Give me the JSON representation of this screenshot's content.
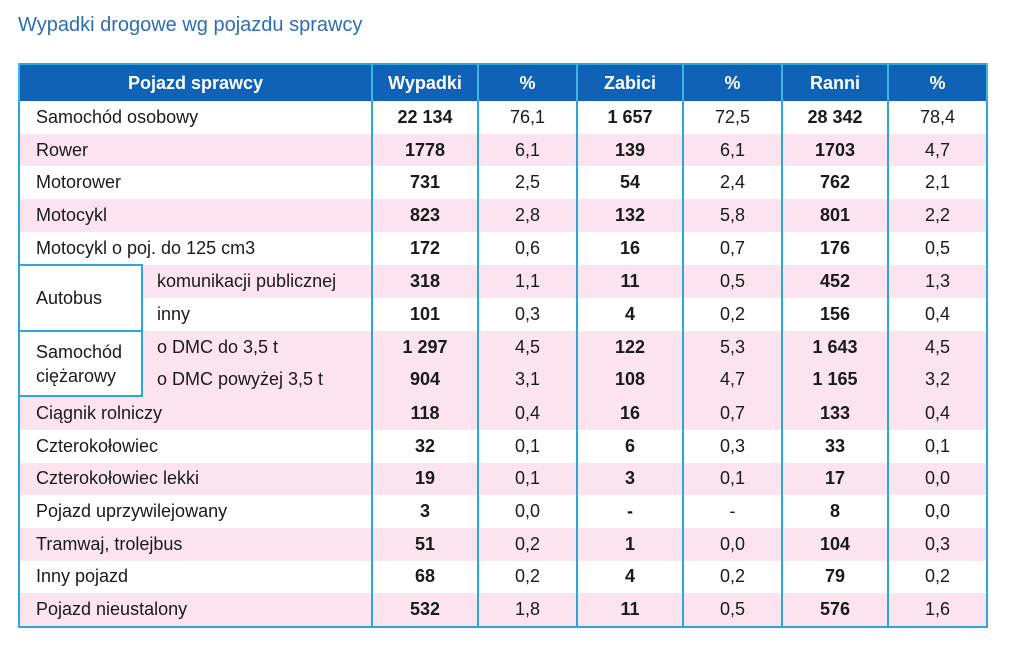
{
  "title": "Wypadki drogowe wg pojazdu sprawcy",
  "headers": [
    "Pojazd sprawcy",
    "Wypadki",
    "%",
    "Zabici",
    "%",
    "Ranni",
    "%"
  ],
  "rows": [
    {
      "name": "Samochód osobowy",
      "v": [
        "22 134",
        "76,1",
        "1 657",
        "72,5",
        "28 342",
        "78,4"
      ]
    },
    {
      "name": "Rower",
      "v": [
        "1778",
        "6,1",
        "139",
        "6,1",
        "1703",
        "4,7"
      ]
    },
    {
      "name": "Motorower",
      "v": [
        "731",
        "2,5",
        "54",
        "2,4",
        "762",
        "2,1"
      ]
    },
    {
      "name": "Motocykl",
      "v": [
        "823",
        "2,8",
        "132",
        "5,8",
        "801",
        "2,2"
      ]
    },
    {
      "name": "Motocykl o poj. do 125 cm3",
      "v": [
        "172",
        "0,6",
        "16",
        "0,7",
        "176",
        "0,5"
      ]
    },
    {
      "group": "Autobus",
      "name": "komunikacji publicznej",
      "v": [
        "318",
        "1,1",
        "11",
        "0,5",
        "452",
        "1,3"
      ]
    },
    {
      "name": "inny",
      "v": [
        "101",
        "0,3",
        "4",
        "0,2",
        "156",
        "0,4"
      ]
    },
    {
      "group": "Samochód ciężarowy",
      "name": "o DMC do 3,5 t",
      "v": [
        "1 297",
        "4,5",
        "122",
        "5,3",
        "1 643",
        "4,5"
      ]
    },
    {
      "name": "o DMC powyżej 3,5 t",
      "v": [
        "904",
        "3,1",
        "108",
        "4,7",
        "1 165",
        "3,2"
      ]
    },
    {
      "name": "Ciągnik rolniczy",
      "v": [
        "118",
        "0,4",
        "16",
        "0,7",
        "133",
        "0,4"
      ]
    },
    {
      "name": "Czterokołowiec",
      "v": [
        "32",
        "0,1",
        "6",
        "0,3",
        "33",
        "0,1"
      ]
    },
    {
      "name": "Czterokołowiec lekki",
      "v": [
        "19",
        "0,1",
        "3",
        "0,1",
        "17",
        "0,0"
      ]
    },
    {
      "name": "Pojazd uprzywilejowany",
      "v": [
        "3",
        "0,0",
        "-",
        "-",
        "8",
        "0,0"
      ]
    },
    {
      "name": "Tramwaj, trolejbus",
      "v": [
        "51",
        "0,2",
        "1",
        "0,0",
        "104",
        "0,3"
      ]
    },
    {
      "name": "Inny pojazd",
      "v": [
        "68",
        "0,2",
        "4",
        "0,2",
        "79",
        "0,2"
      ]
    },
    {
      "name": "Pojazd nieustalony",
      "v": [
        "532",
        "1,8",
        "11",
        "0,5",
        "576",
        "1,6"
      ]
    }
  ]
}
